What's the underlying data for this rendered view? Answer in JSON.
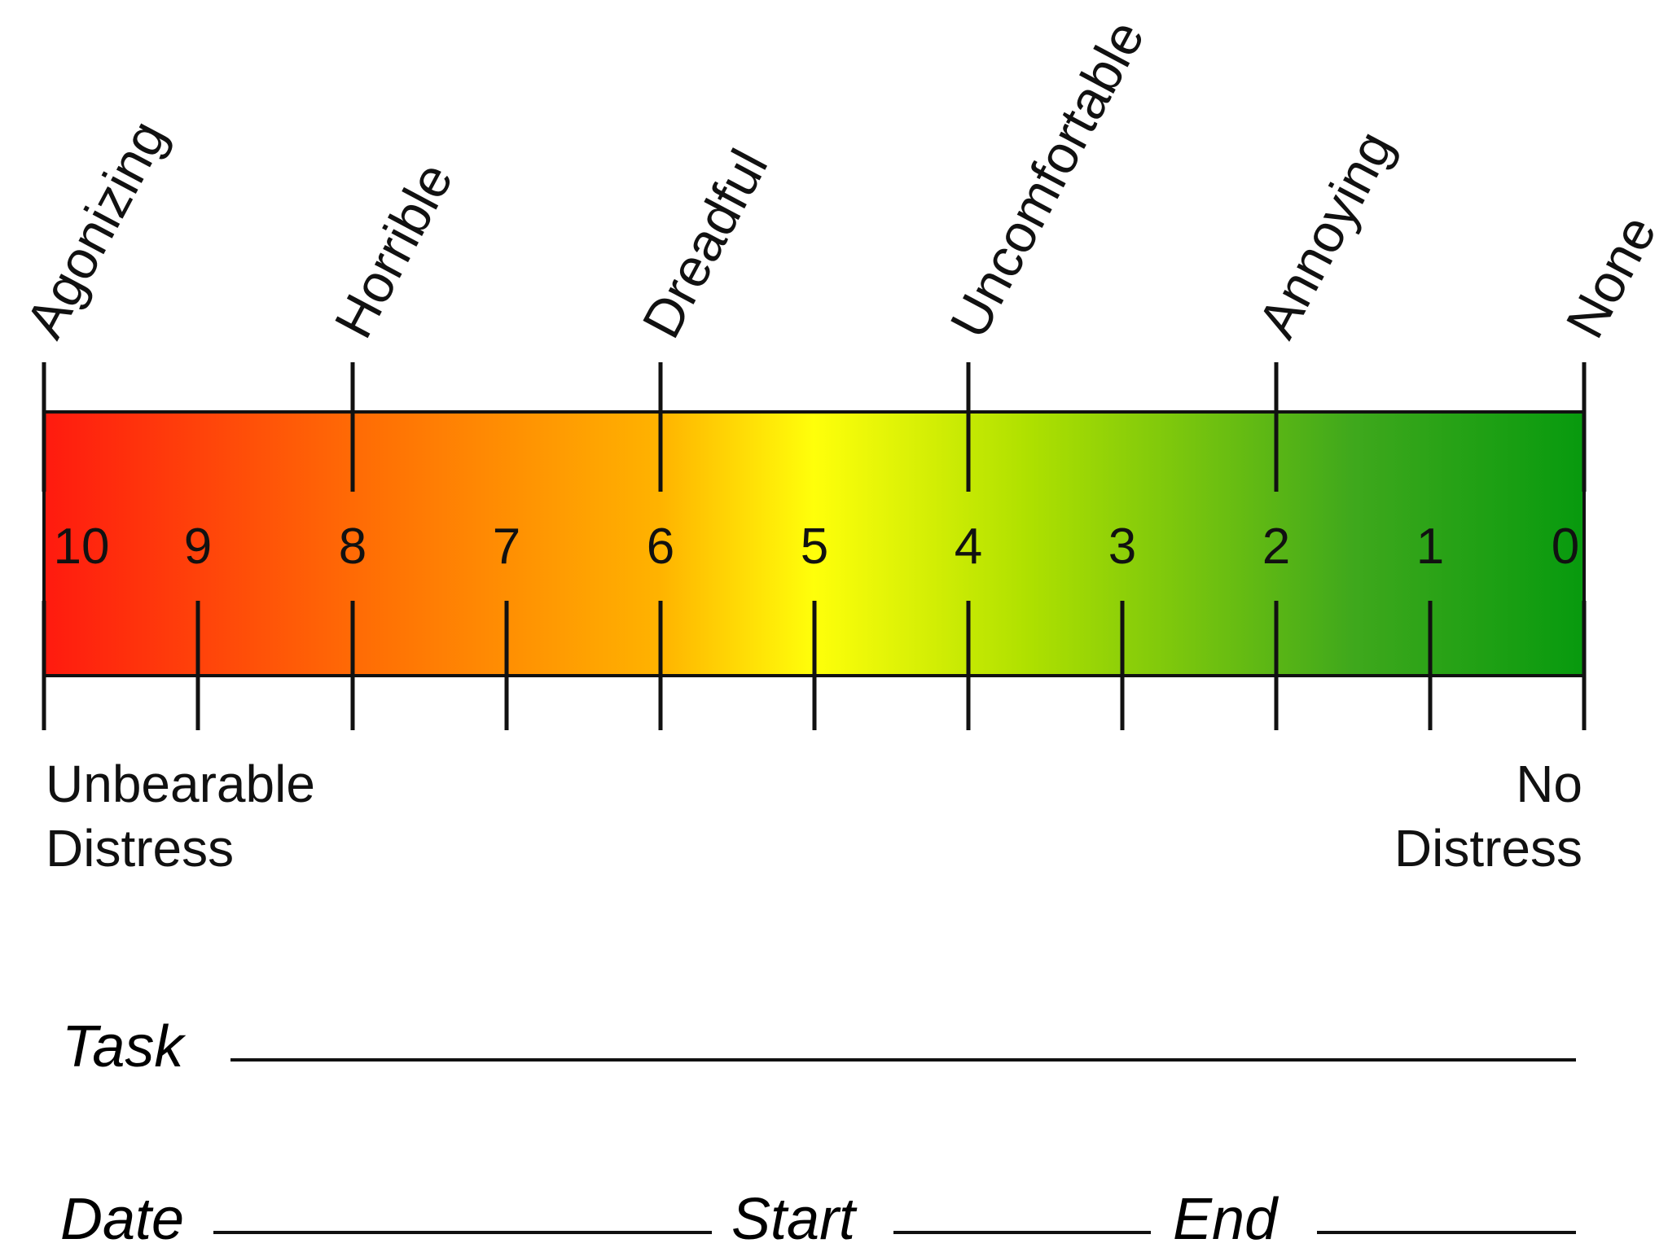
{
  "scale": {
    "top_labels": [
      "Agonizing",
      "Horrible",
      "Dreadful",
      "Uncomfortable",
      "Annoying",
      "None"
    ],
    "numbers": [
      "10",
      "9",
      "8",
      "7",
      "6",
      "5",
      "4",
      "3",
      "2",
      "1",
      "0"
    ],
    "left_caption": [
      "Unbearable",
      "Distress"
    ],
    "right_caption": [
      "No",
      "Distress"
    ],
    "gradient_colors": [
      "#ff1a0f",
      "#ff6a05",
      "#ffb300",
      "#ffff0a",
      "#aee000",
      "#3fa81c",
      "#079a0e"
    ]
  },
  "form": {
    "task_label": "Task",
    "date_label": "Date",
    "start_label": "Start",
    "end_label": "End"
  }
}
